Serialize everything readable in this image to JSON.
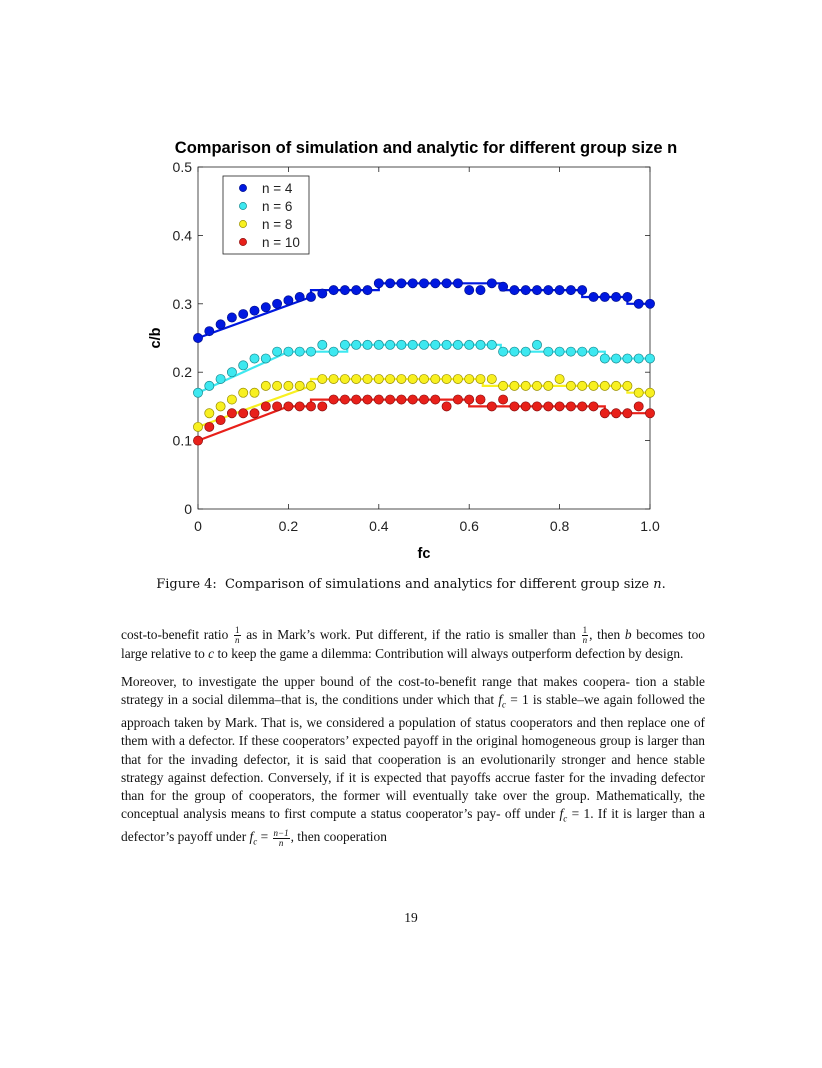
{
  "chart_data": {
    "type": "scatter",
    "title": "Comparison of simulation and analytic for different group size n",
    "xlabel": "fc",
    "ylabel": "c/b",
    "xlim": [
      0,
      1
    ],
    "ylim": [
      0,
      0.5
    ],
    "xticks": [
      "0",
      "0.2",
      "0.4",
      "0.6",
      "0.8",
      "1.0"
    ],
    "yticks": [
      "0",
      "0.1",
      "0.2",
      "0.3",
      "0.4",
      "0.5"
    ],
    "legend_position": "top-left",
    "grid": false,
    "series": [
      {
        "name": "n = 4",
        "color": "#0018e0",
        "stroke": "#001090",
        "simulation_x": [
          0,
          0.025,
          0.05,
          0.075,
          0.1,
          0.125,
          0.15,
          0.175,
          0.2,
          0.225,
          0.25,
          0.275,
          0.3,
          0.325,
          0.35,
          0.375,
          0.4,
          0.425,
          0.45,
          0.475,
          0.5,
          0.525,
          0.55,
          0.575,
          0.6,
          0.625,
          0.65,
          0.675,
          0.7,
          0.725,
          0.75,
          0.775,
          0.8,
          0.825,
          0.85,
          0.875,
          0.9,
          0.925,
          0.95,
          0.975,
          1.0
        ],
        "simulation_y": [
          0.25,
          0.26,
          0.27,
          0.28,
          0.285,
          0.29,
          0.295,
          0.3,
          0.305,
          0.31,
          0.31,
          0.315,
          0.32,
          0.32,
          0.32,
          0.32,
          0.33,
          0.33,
          0.33,
          0.33,
          0.33,
          0.33,
          0.33,
          0.33,
          0.32,
          0.32,
          0.33,
          0.325,
          0.32,
          0.32,
          0.32,
          0.32,
          0.32,
          0.32,
          0.32,
          0.31,
          0.31,
          0.31,
          0.31,
          0.3,
          0.3
        ],
        "analytic_x": [
          0,
          0.25,
          0.25,
          0.33,
          0.33,
          0.4,
          0.4,
          0.5,
          0.5,
          0.6,
          0.6,
          0.67,
          0.67,
          0.75,
          0.75,
          0.8,
          0.8,
          0.85,
          0.85,
          0.9,
          0.9,
          0.95,
          0.95,
          1.0
        ],
        "analytic_y": [
          0.25,
          0.31,
          0.32,
          0.32,
          0.32,
          0.32,
          0.33,
          0.33,
          0.33,
          0.33,
          0.33,
          0.33,
          0.32,
          0.32,
          0.32,
          0.32,
          0.32,
          0.32,
          0.31,
          0.31,
          0.31,
          0.31,
          0.3,
          0.3
        ]
      },
      {
        "name": "n = 6",
        "color": "#3de8f0",
        "stroke": "#1a8a90",
        "simulation_x": [
          0,
          0.025,
          0.05,
          0.075,
          0.1,
          0.125,
          0.15,
          0.175,
          0.2,
          0.225,
          0.25,
          0.275,
          0.3,
          0.325,
          0.35,
          0.375,
          0.4,
          0.425,
          0.45,
          0.475,
          0.5,
          0.525,
          0.55,
          0.575,
          0.6,
          0.625,
          0.65,
          0.675,
          0.7,
          0.725,
          0.75,
          0.775,
          0.8,
          0.825,
          0.85,
          0.875,
          0.9,
          0.925,
          0.95,
          0.975,
          1.0
        ],
        "simulation_y": [
          0.17,
          0.18,
          0.19,
          0.2,
          0.21,
          0.22,
          0.22,
          0.23,
          0.23,
          0.23,
          0.23,
          0.24,
          0.23,
          0.24,
          0.24,
          0.24,
          0.24,
          0.24,
          0.24,
          0.24,
          0.24,
          0.24,
          0.24,
          0.24,
          0.24,
          0.24,
          0.24,
          0.23,
          0.23,
          0.23,
          0.24,
          0.23,
          0.23,
          0.23,
          0.23,
          0.23,
          0.22,
          0.22,
          0.22,
          0.22,
          0.22
        ],
        "analytic_x": [
          0,
          0.2,
          0.2,
          0.33,
          0.33,
          0.67,
          0.67,
          0.8,
          0.8,
          0.9,
          0.9,
          1.0
        ],
        "analytic_y": [
          0.17,
          0.23,
          0.23,
          0.23,
          0.24,
          0.24,
          0.23,
          0.23,
          0.23,
          0.23,
          0.22,
          0.22
        ]
      },
      {
        "name": "n = 8",
        "color": "#f8f020",
        "stroke": "#9a9000",
        "simulation_x": [
          0,
          0.025,
          0.05,
          0.075,
          0.1,
          0.125,
          0.15,
          0.175,
          0.2,
          0.225,
          0.25,
          0.275,
          0.3,
          0.325,
          0.35,
          0.375,
          0.4,
          0.425,
          0.45,
          0.475,
          0.5,
          0.525,
          0.55,
          0.575,
          0.6,
          0.625,
          0.65,
          0.675,
          0.7,
          0.725,
          0.75,
          0.775,
          0.8,
          0.825,
          0.85,
          0.875,
          0.9,
          0.925,
          0.95,
          0.975,
          1.0
        ],
        "simulation_y": [
          0.12,
          0.14,
          0.15,
          0.16,
          0.17,
          0.17,
          0.18,
          0.18,
          0.18,
          0.18,
          0.18,
          0.19,
          0.19,
          0.19,
          0.19,
          0.19,
          0.19,
          0.19,
          0.19,
          0.19,
          0.19,
          0.19,
          0.19,
          0.19,
          0.19,
          0.19,
          0.19,
          0.18,
          0.18,
          0.18,
          0.18,
          0.18,
          0.19,
          0.18,
          0.18,
          0.18,
          0.18,
          0.18,
          0.18,
          0.17,
          0.17
        ],
        "analytic_x": [
          0,
          0.25,
          0.25,
          0.63,
          0.63,
          0.8,
          0.8,
          0.95,
          0.95,
          1.0
        ],
        "analytic_y": [
          0.12,
          0.18,
          0.19,
          0.19,
          0.18,
          0.18,
          0.18,
          0.18,
          0.17,
          0.17
        ]
      },
      {
        "name": "n = 10",
        "color": "#e8201a",
        "stroke": "#901010",
        "simulation_x": [
          0,
          0.025,
          0.05,
          0.075,
          0.1,
          0.125,
          0.15,
          0.175,
          0.2,
          0.225,
          0.25,
          0.275,
          0.3,
          0.325,
          0.35,
          0.375,
          0.4,
          0.425,
          0.45,
          0.475,
          0.5,
          0.525,
          0.55,
          0.575,
          0.6,
          0.625,
          0.65,
          0.675,
          0.7,
          0.725,
          0.75,
          0.775,
          0.8,
          0.825,
          0.85,
          0.875,
          0.9,
          0.925,
          0.95,
          0.975,
          1.0
        ],
        "simulation_y": [
          0.1,
          0.12,
          0.13,
          0.14,
          0.14,
          0.14,
          0.15,
          0.15,
          0.15,
          0.15,
          0.15,
          0.15,
          0.16,
          0.16,
          0.16,
          0.16,
          0.16,
          0.16,
          0.16,
          0.16,
          0.16,
          0.16,
          0.15,
          0.16,
          0.16,
          0.16,
          0.15,
          0.16,
          0.15,
          0.15,
          0.15,
          0.15,
          0.15,
          0.15,
          0.15,
          0.15,
          0.14,
          0.14,
          0.14,
          0.15,
          0.14
        ],
        "analytic_x": [
          0,
          0.2,
          0.2,
          0.25,
          0.25,
          0.6,
          0.6,
          0.9,
          0.9,
          1.0
        ],
        "analytic_y": [
          0.1,
          0.15,
          0.15,
          0.15,
          0.16,
          0.16,
          0.15,
          0.15,
          0.14,
          0.14
        ]
      }
    ]
  },
  "caption": {
    "label": "Figure 4:",
    "text": "Comparison of simulations and analytics for different group size",
    "var": "n",
    "end": "."
  },
  "paragraph1": {
    "t1": "cost-to-benefit ratio",
    "f1_num": "1",
    "f1_den": "n",
    "t2": "as in Mark’s work. Put different, if the ratio is smaller than",
    "f2_num": "1",
    "f2_den": "n",
    "t3": ", then",
    "v_b": "b",
    "t4": "becomes too large relative to",
    "v_c": "c",
    "t5": "to keep the game a dilemma: Contribution will always outperform defection by design."
  },
  "paragraph2": {
    "t1": "Moreover, to investigate the upper bound of the cost-to-benefit range that makes coopera- tion a stable strategy in a social dilemma–that is, the conditions under which that",
    "m1": "f",
    "m1_sub": "c",
    "m1_rest": " = 1",
    "t2": "is stable–we again followed the approach taken by Mark. That is, we considered a population of status cooperators and then replace one of them with a defector. If these cooperators’ expected payoff in the original homogeneous group is larger than that for the invading defector, it is said that cooperation is an evolutionarily stronger and hence stable strategy against defection. Conversely, if it is expected that payoffs accrue faster for the invading defector than for the group of cooperators, the former will eventually take over the group. Mathematically, the conceptual analysis means to first compute a status cooperator’s pay- off under",
    "m2": "f",
    "m2_sub": "c",
    "m2_rest": " = 1",
    "t3": ". If it is larger than a defector’s payoff under",
    "m3": "f",
    "m3_sub": "c",
    "m3_eq": " = ",
    "f3_num": "n−1",
    "f3_den": "n",
    "t4": ", then cooperation"
  },
  "page_number": "19"
}
